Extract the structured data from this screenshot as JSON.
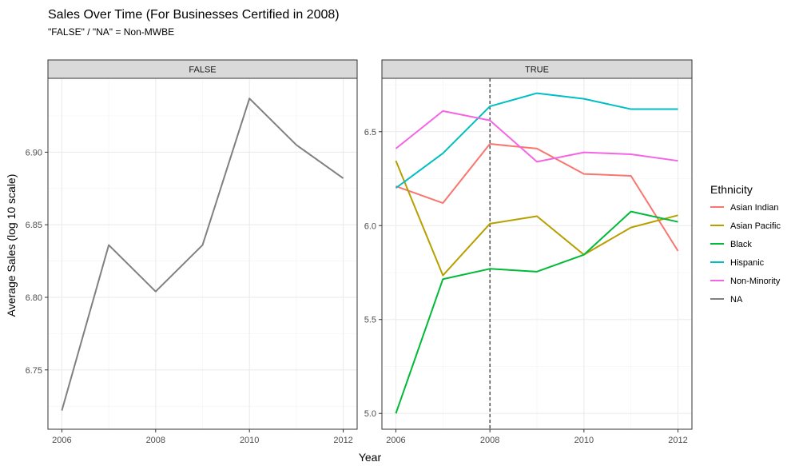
{
  "chart_data": {
    "type": "line",
    "title": "Sales Over Time (For Businesses Certified in 2008)",
    "subtitle": "\"FALSE\" / \"NA\" = Non-MWBE",
    "xlabel": "Year",
    "ylabel": "Average Sales (log 10 scale)",
    "x": [
      2006,
      2007,
      2008,
      2009,
      2010,
      2011,
      2012
    ],
    "legend": {
      "title": "Ethnicity",
      "position": "right",
      "entries": [
        {
          "name": "Asian Indian",
          "color": "#F8766D"
        },
        {
          "name": "Asian Pacific",
          "color": "#B79F00"
        },
        {
          "name": "Black",
          "color": "#00BA38"
        },
        {
          "name": "Hispanic",
          "color": "#00BFC4"
        },
        {
          "name": "Non-Minority",
          "color": "#F564E3"
        },
        {
          "name": "NA",
          "color": "#808080"
        }
      ]
    },
    "panels": [
      {
        "strip": "FALSE",
        "xlim": [
          2006,
          2012
        ],
        "ylim": [
          6.72,
          6.94
        ],
        "xticks": [
          2006,
          2008,
          2010,
          2012
        ],
        "xtick_labels": [
          "2006",
          "2008",
          "2010",
          "2012"
        ],
        "yticks": [
          6.75,
          6.8,
          6.85,
          6.9
        ],
        "ytick_labels": [
          "6.75",
          "6.80",
          "6.85",
          "6.90"
        ],
        "series": [
          {
            "name": "NA",
            "color": "#808080",
            "values": [
              6.722,
              6.836,
              6.804,
              6.836,
              6.937,
              6.905,
              6.882
            ]
          }
        ]
      },
      {
        "strip": "TRUE",
        "xlim": [
          2006,
          2012
        ],
        "ylim": [
          5.0,
          6.7
        ],
        "xticks": [
          2006,
          2008,
          2010,
          2012
        ],
        "xtick_labels": [
          "2006",
          "2008",
          "2010",
          "2012"
        ],
        "yticks": [
          5.0,
          5.5,
          6.0,
          6.5
        ],
        "ytick_labels": [
          "5.0",
          "5.5",
          "6.0",
          "6.5"
        ],
        "vline": 2008,
        "series": [
          {
            "name": "Asian Indian",
            "color": "#F8766D",
            "values": [
              6.21,
              6.12,
              6.435,
              6.41,
              6.275,
              6.265,
              5.865
            ]
          },
          {
            "name": "Asian Pacific",
            "color": "#B79F00",
            "values": [
              6.345,
              5.735,
              6.01,
              6.05,
              5.845,
              5.99,
              6.055
            ]
          },
          {
            "name": "Black",
            "color": "#00BA38",
            "values": [
              5.0,
              5.715,
              5.77,
              5.755,
              5.845,
              6.075,
              6.02
            ]
          },
          {
            "name": "Hispanic",
            "color": "#00BFC4",
            "values": [
              6.2,
              6.385,
              6.635,
              6.705,
              6.675,
              6.62,
              6.62
            ]
          },
          {
            "name": "Non-Minority",
            "color": "#F564E3",
            "values": [
              6.41,
              6.61,
              6.56,
              6.34,
              6.39,
              6.38,
              6.345
            ]
          }
        ]
      }
    ]
  }
}
